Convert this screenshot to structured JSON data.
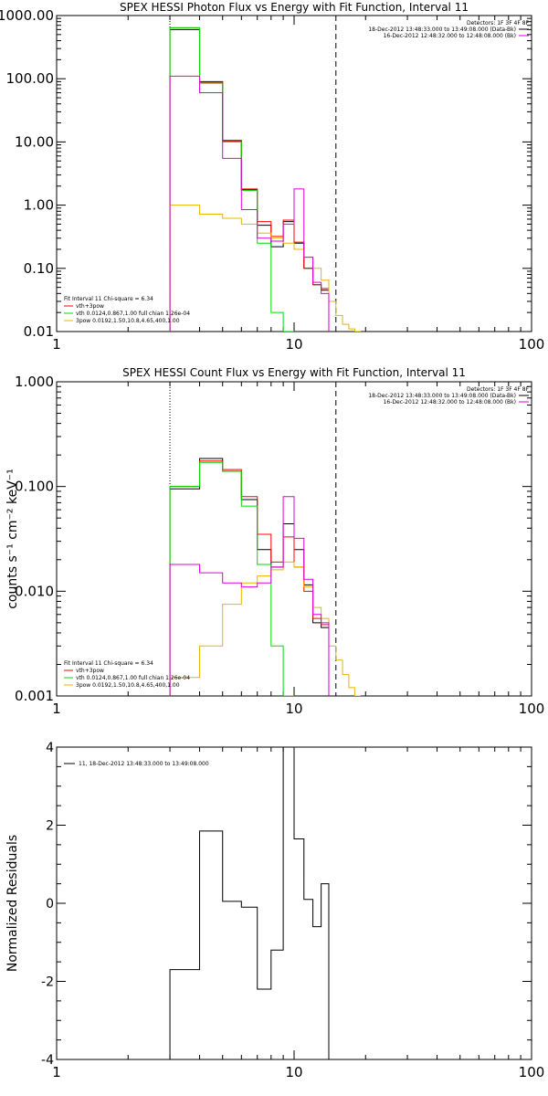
{
  "chart_data": [
    {
      "type": "line",
      "title": "SPEX HESSI Photon Flux vs Energy with Fit Function, Interval 11",
      "xscale": "log",
      "yscale": "log",
      "xlim": [
        1,
        100
      ],
      "ylim": [
        0.01,
        1000
      ],
      "x_tick_labels": [
        "1",
        "10",
        "100"
      ],
      "y_tick_labels": [
        "0.01",
        "0.10",
        "1.00",
        "10.00",
        "100.00",
        "1000.00"
      ],
      "x_ticks": [
        1,
        10,
        100
      ],
      "y_ticks": [
        0.01,
        0.1,
        1,
        10,
        100,
        1000
      ],
      "vlines": [
        {
          "x": 3.0,
          "style": "dotted"
        },
        {
          "x": 15.0,
          "style": "dashed"
        }
      ],
      "bin_edges": [
        3.0,
        4.0,
        5.0,
        6.0,
        7.0,
        8.0,
        9.0,
        10.0,
        11.0,
        12.0,
        13.0,
        14.0,
        15.0,
        16.0,
        17.0,
        18.0,
        19.0,
        20.0
      ],
      "legend_top": [
        "Detectors: 1F 3F 4F 8F",
        "18-Dec-2012 13:48:33.000 to 13:49:08.000 (Data-Bk)",
        "16-Dec-2012 12:48:32.000 to 12:48:08.000 (Bk)"
      ],
      "legend_bottom": [
        "Fit Interval 11    Chi-square = 6.34",
        "vth+3pow",
        "vth 0.0124,0.867,1.00  full chian 1.26e-04",
        "3pow 0.0192,1.50,10.8,4.65,400,1.00"
      ],
      "series": [
        {
          "name": "18-Dec-2012 13:48:33.000 to 13:49:08.000 (Data-Bk)",
          "color": "#000000",
          "values": [
            600,
            90,
            10.5,
            1.75,
            0.48,
            0.22,
            0.55,
            0.25,
            0.1,
            0.055,
            0.045,
            null,
            null,
            null,
            null,
            null,
            null
          ]
        },
        {
          "name": "vth+3pow",
          "color": "#ff0000",
          "values": [
            640,
            88,
            10.2,
            1.8,
            0.55,
            0.32,
            0.58,
            0.26,
            0.1,
            0.055,
            0.048,
            null,
            null,
            null,
            null,
            null,
            null
          ]
        },
        {
          "name": "vth 0.0124,0.867,1.00  full chian 1.26e-04",
          "color": "#00dd00",
          "values": [
            640,
            85,
            10,
            1.7,
            0.25,
            0.02,
            0.01,
            null,
            null,
            null,
            null,
            null,
            null,
            null,
            null,
            null,
            null
          ]
        },
        {
          "name": "3pow 0.0192,1.50,10.8,4.65,400,1.00",
          "color": "#e8b400",
          "values": [
            1.0,
            0.72,
            0.62,
            0.5,
            0.36,
            0.3,
            0.25,
            0.2,
            0.15,
            0.1,
            0.065,
            0.03,
            0.018,
            0.013,
            0.011,
            0.01,
            null
          ]
        },
        {
          "name": "16-Dec-2012 12:48:32.000 to 12:48:08.000 (Bk)",
          "color": "#dd00dd",
          "values": [
            110,
            60,
            5.5,
            0.85,
            0.3,
            0.27,
            0.5,
            1.8,
            0.15,
            0.06,
            0.04,
            null,
            null,
            null,
            null,
            null,
            null
          ]
        }
      ]
    },
    {
      "type": "line",
      "title": "SPEX HESSI Count Flux vs Energy with Fit Function, Interval 11",
      "ylabel": "counts s⁻¹ cm⁻² keV⁻¹",
      "xscale": "log",
      "yscale": "log",
      "xlim": [
        1,
        100
      ],
      "ylim": [
        0.001,
        1
      ],
      "x_tick_labels": [
        "1",
        "10",
        "100"
      ],
      "y_tick_labels": [
        "0.001",
        "0.010",
        "0.100",
        "1.000"
      ],
      "x_ticks": [
        1,
        10,
        100
      ],
      "y_ticks": [
        0.001,
        0.01,
        0.1,
        1
      ],
      "vlines": [
        {
          "x": 3.0,
          "style": "dotted"
        },
        {
          "x": 15.0,
          "style": "dashed"
        }
      ],
      "bin_edges": [
        3.0,
        4.0,
        5.0,
        6.0,
        7.0,
        8.0,
        9.0,
        10.0,
        11.0,
        12.0,
        13.0,
        14.0,
        15.0,
        16.0,
        17.0,
        18.0,
        19.0,
        20.0
      ],
      "legend_top": [
        "Detectors: 1F 3F 4F 8F",
        "18-Dec-2012 13:48:33.000 to 13:49:08.000 (Data-Bk)",
        "16-Dec-2012 12:48:32.000 to 12:48:08.000 (Bk)"
      ],
      "legend_bottom": [
        "Fit Interval 11    Chi-square = 6.34",
        "vth+3pow",
        "vth 0.0124,0.867,1.00  full chian 1.26e-04",
        "3pow 0.0192,1.50,10.8,4.65,400,1.00"
      ],
      "series": [
        {
          "name": "18-Dec-2012 13:48:33.000 to 13:49:08.000 (Data-Bk)",
          "color": "#000000",
          "values": [
            0.095,
            0.185,
            0.14,
            0.075,
            0.025,
            0.017,
            0.044,
            0.025,
            0.0115,
            0.005,
            0.0045,
            null,
            null,
            null,
            null,
            null,
            null
          ]
        },
        {
          "name": "vth+3pow",
          "color": "#ff0000",
          "values": [
            0.1,
            0.175,
            0.145,
            0.08,
            0.035,
            0.019,
            0.033,
            0.017,
            0.01,
            0.0055,
            0.0048,
            null,
            null,
            null,
            null,
            null,
            null
          ]
        },
        {
          "name": "vth 0.0124,0.867,1.00  full chian 1.26e-04",
          "color": "#00dd00",
          "values": [
            0.1,
            0.17,
            0.14,
            0.065,
            0.018,
            0.003,
            0.001,
            null,
            null,
            null,
            null,
            null,
            null,
            null,
            null,
            null,
            null
          ]
        },
        {
          "name": "3pow 0.0192,1.50,10.8,4.65,400,1.00",
          "color": "#e8b400",
          "values": [
            0.0015,
            0.003,
            0.0075,
            0.012,
            0.014,
            0.016,
            0.019,
            0.017,
            0.011,
            0.007,
            0.0055,
            0.003,
            0.0022,
            0.0016,
            0.0012,
            0.001,
            null
          ]
        },
        {
          "name": "16-Dec-2012 12:48:32.000 to 12:48:08.000 (Bk)",
          "color": "#dd00dd",
          "values": [
            0.018,
            0.015,
            0.012,
            0.011,
            0.012,
            0.017,
            0.08,
            0.032,
            0.013,
            0.006,
            0.005,
            null,
            null,
            null,
            null,
            null,
            null
          ]
        }
      ]
    },
    {
      "type": "line",
      "ylabel": "Normalized Residuals",
      "xscale": "log",
      "yscale": "linear",
      "xlim": [
        1,
        100
      ],
      "ylim": [
        -4,
        4
      ],
      "x_tick_labels": [
        "1",
        "10",
        "100"
      ],
      "y_tick_labels": [
        "-4",
        "-2",
        "0",
        "2",
        "4"
      ],
      "x_ticks": [
        1,
        10,
        100
      ],
      "y_ticks": [
        -4,
        -2,
        0,
        2,
        4
      ],
      "legend": [
        "11, 18-Dec-2012 13:48:33.000 to 13:49:08.000"
      ],
      "bin_edges": [
        3.0,
        4.0,
        5.0,
        6.0,
        7.0,
        8.0,
        9.0,
        10.0,
        11.0,
        12.0,
        13.0,
        14.0,
        15.0
      ],
      "series": [
        {
          "name": "11, 18-Dec-2012 13:48:33.000 to 13:49:08.000",
          "color": "#000000",
          "values": [
            -1.7,
            1.85,
            0.05,
            -0.1,
            -2.2,
            -1.2,
            4.0,
            1.65,
            0.1,
            -0.6,
            0.5
          ]
        }
      ]
    }
  ]
}
